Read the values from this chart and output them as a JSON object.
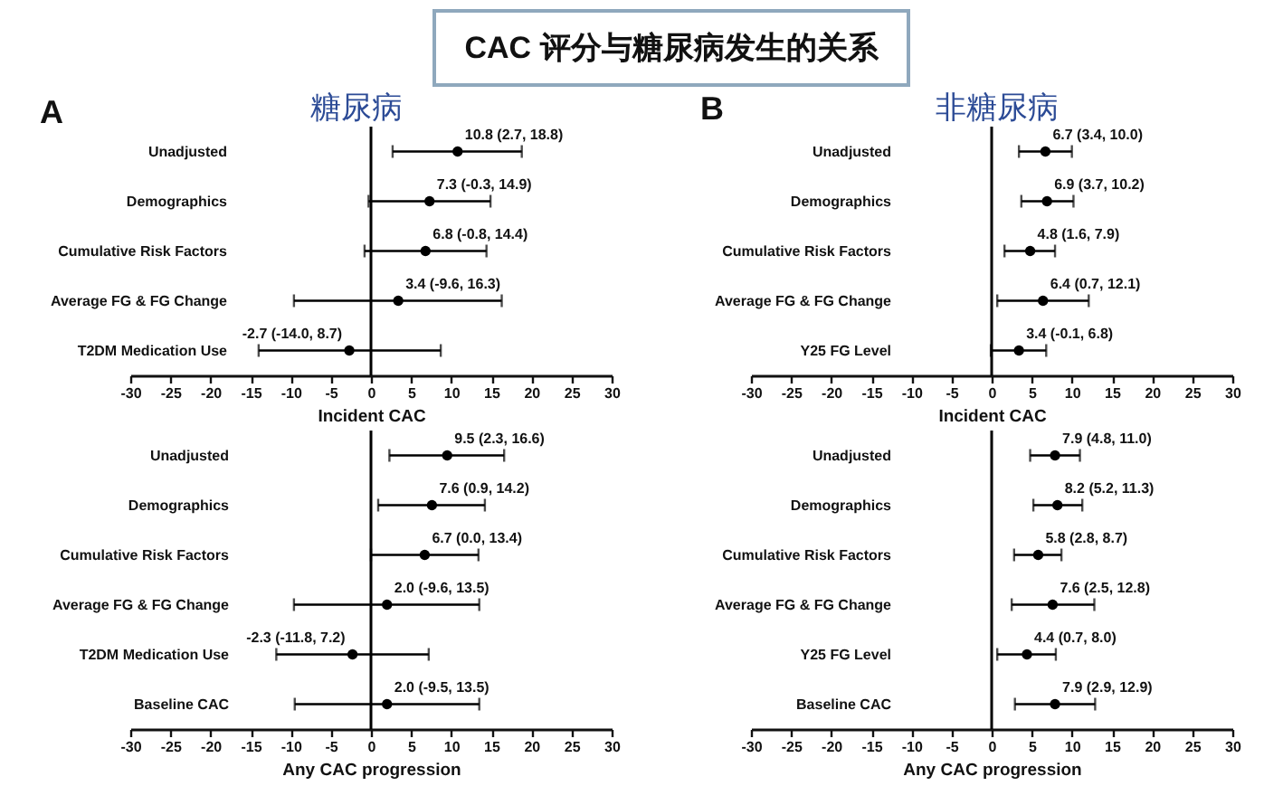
{
  "chart_data": [
    {
      "type": "scatter",
      "orientation": "horizontal",
      "title": "CAC 评分与糖尿病发生的关系",
      "subtitle": "糖尿病",
      "annotations": [
        "A"
      ],
      "categories": [
        "Unadjusted",
        "Demographics",
        "Cumulative Risk Factors",
        "Average FG & FG Change",
        "T2DM Medication Use"
      ],
      "values": [
        10.8,
        7.3,
        6.8,
        3.4,
        -2.7
      ],
      "errors": [
        [
          2.7,
          18.8
        ],
        [
          -0.3,
          14.9
        ],
        [
          -0.8,
          14.4
        ],
        [
          -9.6,
          16.3
        ],
        [
          -14.0,
          8.7
        ]
      ],
      "value_labels": [
        "10.8 (2.7, 18.8)",
        "7.3 (-0.3, 14.9)",
        "6.8 (-0.8, 14.4)",
        "3.4 (-9.6, 16.3)",
        "-2.7 (-14.0, 8.7)"
      ],
      "color": "#000000",
      "marker": "circle",
      "xlabel": "Incident CAC",
      "xlim": [
        -30,
        30
      ],
      "xticks": [
        -30,
        -25,
        -20,
        -15,
        -10,
        -5,
        0,
        5,
        10,
        15,
        20,
        25,
        30
      ],
      "ref_lines": [
        {
          "axis": "x",
          "value": 0,
          "color": "#000000"
        }
      ]
    },
    {
      "type": "scatter",
      "orientation": "horizontal",
      "categories": [
        "Unadjusted",
        "Demographics",
        "Cumulative Risk Factors",
        "Average FG & FG Change",
        "T2DM Medication Use",
        "Baseline CAC"
      ],
      "values": [
        9.5,
        7.6,
        6.7,
        2.0,
        -2.3,
        2.0
      ],
      "errors": [
        [
          2.3,
          16.6
        ],
        [
          0.9,
          14.2
        ],
        [
          0.0,
          13.4
        ],
        [
          -9.6,
          13.5
        ],
        [
          -11.8,
          7.2
        ],
        [
          -9.5,
          13.5
        ]
      ],
      "value_labels": [
        "9.5 (2.3, 16.6)",
        "7.6 (0.9, 14.2)",
        "6.7 (0.0, 13.4)",
        "2.0 (-9.6, 13.5)",
        "-2.3 (-11.8, 7.2)",
        "2.0 (-9.5, 13.5)"
      ],
      "color": "#000000",
      "marker": "circle",
      "xlabel": "Any CAC progression",
      "xlim": [
        -30,
        30
      ],
      "xticks": [
        -30,
        -25,
        -20,
        -15,
        -10,
        -5,
        0,
        5,
        10,
        15,
        20,
        25,
        30
      ],
      "ref_lines": [
        {
          "axis": "x",
          "value": 0,
          "color": "#000000"
        }
      ]
    },
    {
      "type": "scatter",
      "orientation": "horizontal",
      "subtitle": "非糖尿病",
      "annotations": [
        "B"
      ],
      "categories": [
        "Unadjusted",
        "Demographics",
        "Cumulative Risk Factors",
        "Average FG & FG Change",
        "Y25 FG Level"
      ],
      "values": [
        6.7,
        6.9,
        4.8,
        6.4,
        3.4
      ],
      "errors": [
        [
          3.4,
          10.0
        ],
        [
          3.7,
          10.2
        ],
        [
          1.6,
          7.9
        ],
        [
          0.7,
          12.1
        ],
        [
          -0.1,
          6.8
        ]
      ],
      "value_labels": [
        "6.7 (3.4, 10.0)",
        "6.9 (3.7, 10.2)",
        "4.8 (1.6, 7.9)",
        "6.4 (0.7, 12.1)",
        "3.4 (-0.1, 6.8)"
      ],
      "color": "#000000",
      "marker": "circle",
      "xlabel": "Incident CAC",
      "xlim": [
        -30,
        30
      ],
      "xticks": [
        -30,
        -25,
        -20,
        -15,
        -10,
        -5,
        0,
        5,
        10,
        15,
        20,
        25,
        30
      ],
      "ref_lines": [
        {
          "axis": "x",
          "value": 0,
          "color": "#000000"
        }
      ]
    },
    {
      "type": "scatter",
      "orientation": "horizontal",
      "categories": [
        "Unadjusted",
        "Demographics",
        "Cumulative Risk Factors",
        "Average FG & FG Change",
        "Y25 FG Level",
        "Baseline CAC"
      ],
      "values": [
        7.9,
        8.2,
        5.8,
        7.6,
        4.4,
        7.9
      ],
      "errors": [
        [
          4.8,
          11.0
        ],
        [
          5.2,
          11.3
        ],
        [
          2.8,
          8.7
        ],
        [
          2.5,
          12.8
        ],
        [
          0.7,
          8.0
        ],
        [
          2.9,
          12.9
        ]
      ],
      "value_labels": [
        "7.9 (4.8, 11.0)",
        "8.2 (5.2, 11.3)",
        "5.8 (2.8, 8.7)",
        "7.6 (2.5, 12.8)",
        "4.4 (0.7, 8.0)",
        "7.9 (2.9, 12.9)"
      ],
      "color": "#000000",
      "marker": "circle",
      "xlabel": "Any CAC progression",
      "xlim": [
        -30,
        30
      ],
      "xticks": [
        -30,
        -25,
        -20,
        -15,
        -10,
        -5,
        0,
        5,
        10,
        15,
        20,
        25,
        30
      ],
      "ref_lines": [
        {
          "axis": "x",
          "value": 0,
          "color": "#000000"
        }
      ]
    }
  ]
}
